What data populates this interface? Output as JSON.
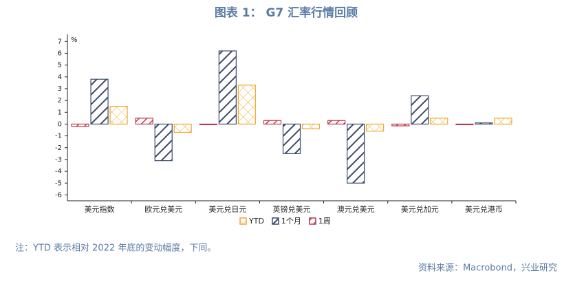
{
  "title": "图表 1：  G7 汇率行情回顾",
  "chart_data": {
    "type": "bar",
    "unit": "%",
    "categories": [
      "美元指数",
      "欧元兑美元",
      "美元兑日元",
      "英镑兑美元",
      "澳元兑美元",
      "美元兑加元",
      "美元兑港币"
    ],
    "series": [
      {
        "name": "1周",
        "color": "#c0394b",
        "values": [
          -0.2,
          0.5,
          -0.05,
          0.3,
          0.3,
          -0.15,
          -0.05
        ]
      },
      {
        "name": "1个月",
        "color": "#3c4a6b",
        "values": [
          3.8,
          -3.1,
          6.2,
          -2.5,
          -5.0,
          2.4,
          0.1
        ]
      },
      {
        "name": "YTD",
        "color": "#f0a830",
        "values": [
          1.5,
          -0.7,
          3.3,
          -0.4,
          -0.6,
          0.5,
          0.5
        ]
      }
    ],
    "ylim": [
      -6.5,
      7.6
    ],
    "yticks": [
      -6,
      -5,
      -4,
      -3,
      -2,
      -1,
      0,
      1,
      2,
      3,
      4,
      5,
      6,
      7
    ]
  },
  "note": "注：YTD 表示相对 2022 年底的变动幅度，下同。",
  "source": "资料来源：Macrobond，兴业研究"
}
